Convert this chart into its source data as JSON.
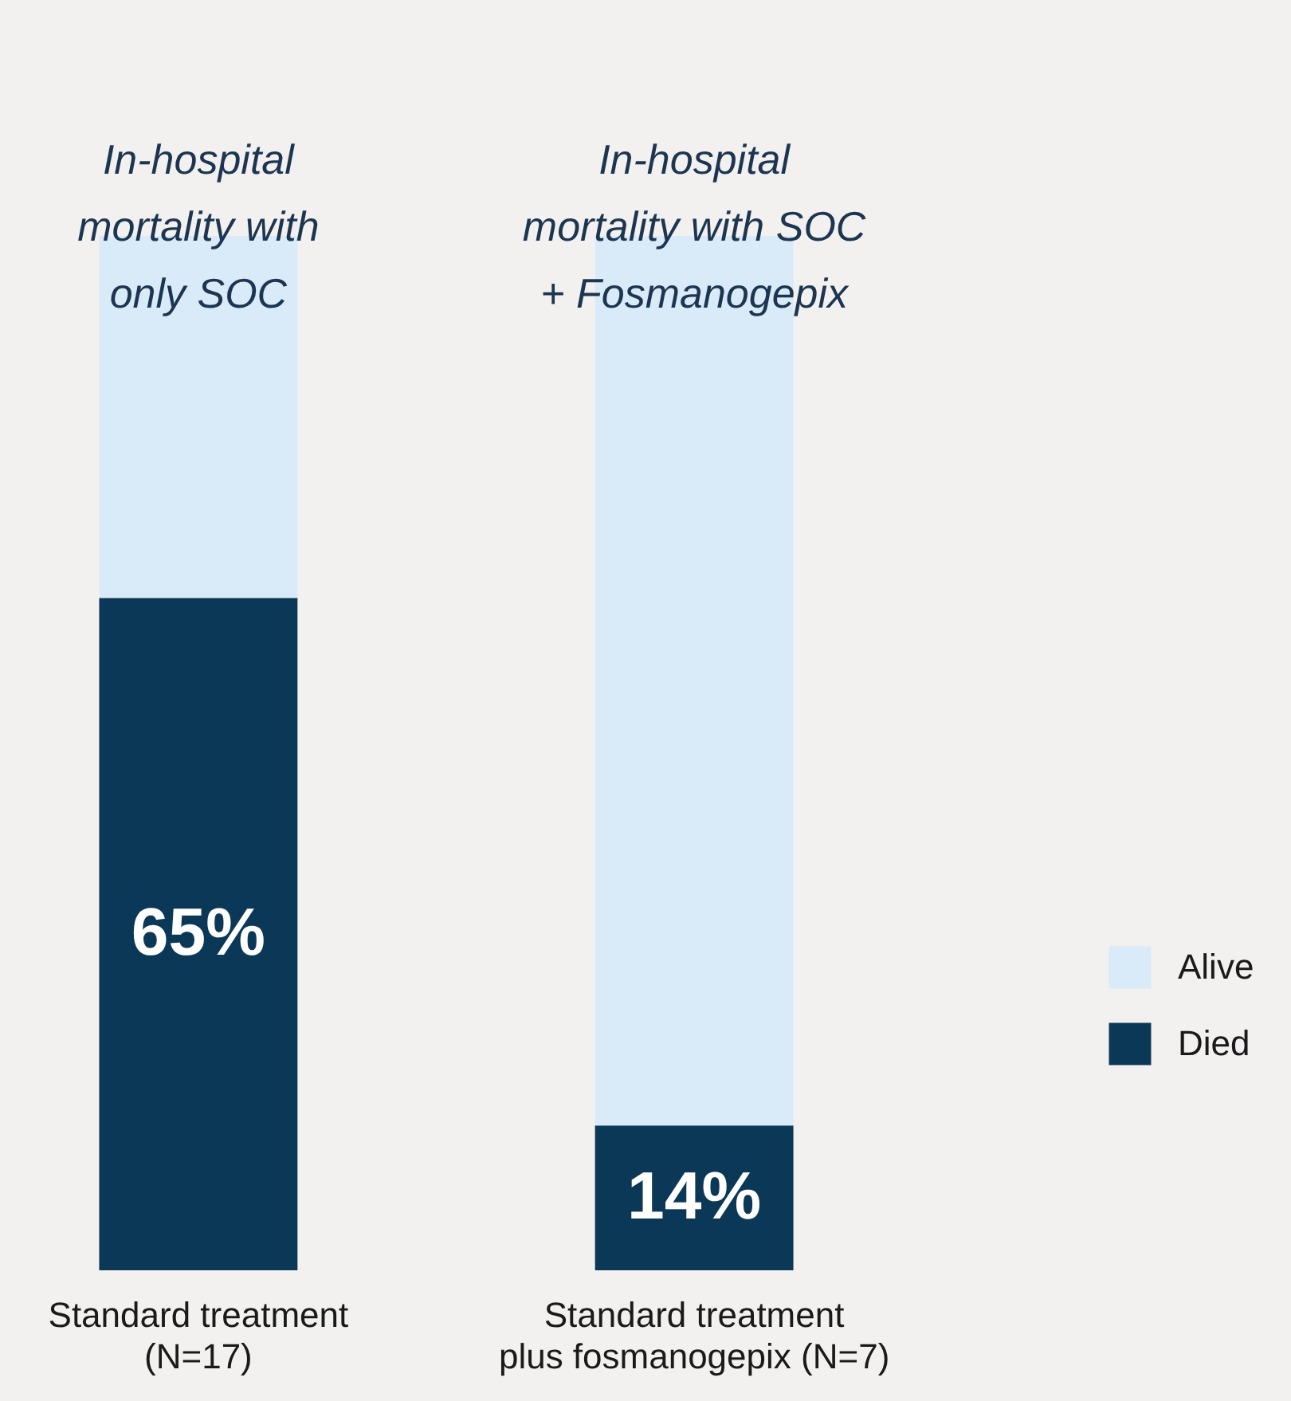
{
  "chart_data": {
    "type": "bar",
    "stacked": true,
    "categories": [
      "Standard treatment (N=17)",
      "Standard treatment plus fosmanogepix (N=7)"
    ],
    "series": [
      {
        "name": "Died",
        "color": "#0c3857",
        "values": [
          65,
          14
        ],
        "value_labels": [
          "65%",
          "14%"
        ]
      },
      {
        "name": "Alive",
        "color": "#d9ebf8",
        "values": [
          35,
          86
        ]
      }
    ],
    "ylim": [
      0,
      100
    ],
    "tick_labels": "x",
    "legend": "right",
    "annotations": [
      "In-hospital mortality with only SOC",
      "In-hospital mortality with SOC + Fosmanogepix"
    ]
  }
}
